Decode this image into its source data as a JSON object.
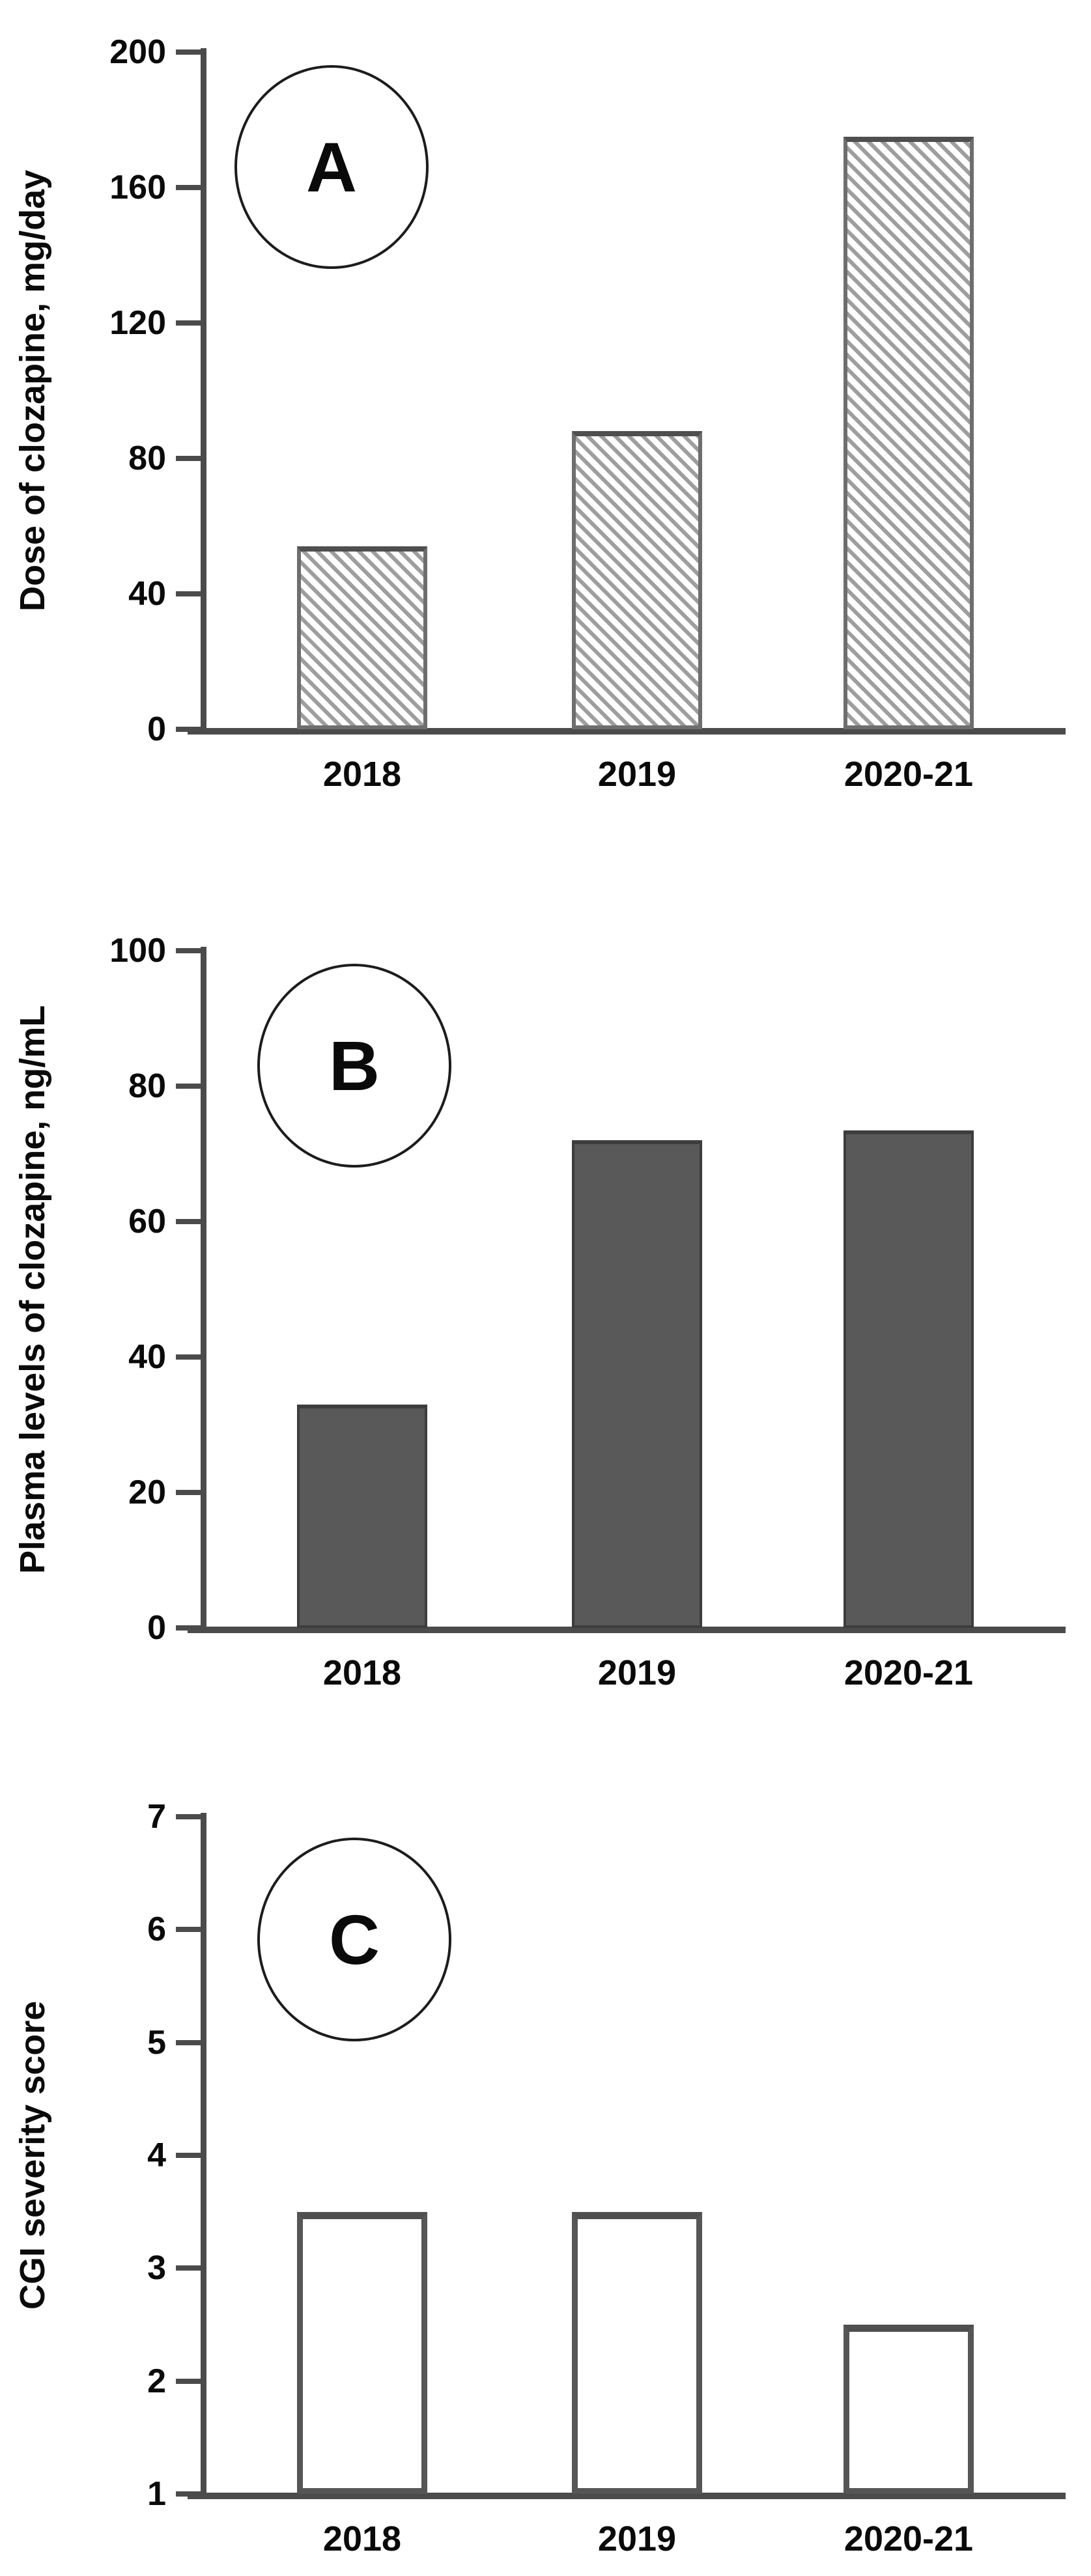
{
  "figure": {
    "background": "#ffffff",
    "x_categories": [
      "2018",
      "2019",
      "2020-21"
    ]
  },
  "colors": {
    "axis": "#4b4b4b",
    "text": "#0a0a0a",
    "hatch_stripe": "#9e9e9e",
    "hatch_border": "#6e6e6e",
    "solid_bar_fill": "#595959",
    "solid_bar_border": "#3d3d3d",
    "outline_bar_border": "#565656",
    "circle_border": "#1c1c1c"
  },
  "chart_data": [
    {
      "type": "bar",
      "panel_label": "A",
      "title": "",
      "ylabel": "Dose of clozapine, mg/day",
      "xlabel": "",
      "categories": [
        "2018",
        "2019",
        "2020-21"
      ],
      "values": [
        54,
        88,
        175
      ],
      "ylim": [
        0,
        200
      ],
      "yticks": [
        0,
        40,
        80,
        120,
        160,
        200
      ],
      "bar_style": "hatched",
      "grid": false,
      "legend_position": "none"
    },
    {
      "type": "bar",
      "panel_label": "B",
      "title": "",
      "ylabel": "Plasma levels of clozapine, ng/mL",
      "xlabel": "",
      "categories": [
        "2018",
        "2019",
        "2020-21"
      ],
      "values": [
        33,
        72,
        73.5
      ],
      "ylim": [
        0,
        100
      ],
      "yticks": [
        0,
        20,
        40,
        60,
        80,
        100
      ],
      "bar_style": "solid",
      "grid": false,
      "legend_position": "none"
    },
    {
      "type": "bar",
      "panel_label": "C",
      "title": "",
      "ylabel": "CGI severity score",
      "xlabel": "",
      "categories": [
        "2018",
        "2019",
        "2020-21"
      ],
      "values": [
        3.5,
        3.5,
        2.5
      ],
      "ylim": [
        1,
        7
      ],
      "yticks": [
        1,
        2,
        3,
        4,
        5,
        6,
        7
      ],
      "bar_style": "outline",
      "grid": false,
      "legend_position": "none"
    }
  ]
}
